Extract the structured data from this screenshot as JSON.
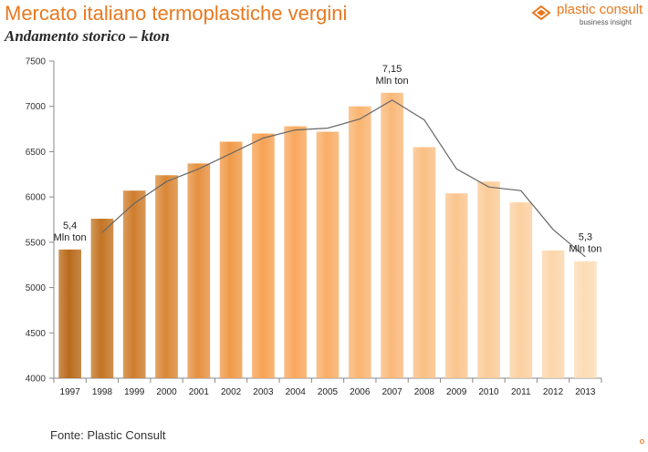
{
  "header": {
    "title": "Mercato italiano termoplastiche vergini",
    "subtitle": "Andamento storico – kton"
  },
  "logo": {
    "name": "plastic consult",
    "tagline": "business insight",
    "icon": "plastic-consult-logo-icon"
  },
  "footer": {
    "source": "Fonte: Plastic Consult"
  },
  "colors": {
    "accent": "#e8781e",
    "bar_dark": "#b86a1a",
    "bar_bright": "#f7a04f",
    "bar_light": "#fcdcb5",
    "trend_line": "#666666"
  },
  "chart_data": {
    "type": "bar",
    "categories": [
      "1997",
      "1998",
      "1999",
      "2000",
      "2001",
      "2002",
      "2003",
      "2004",
      "2005",
      "2006",
      "2007",
      "2008",
      "2009",
      "2010",
      "2011",
      "2012",
      "2013"
    ],
    "values": [
      5420,
      5760,
      6070,
      6240,
      6370,
      6610,
      6700,
      6780,
      6720,
      7000,
      7150,
      6550,
      6040,
      6170,
      5940,
      5410,
      5290
    ],
    "trend_line": {
      "x": [
        "1998",
        "1999",
        "2000",
        "2001",
        "2002",
        "2003",
        "2004",
        "2005",
        "2006",
        "2007",
        "2008",
        "2009",
        "2010",
        "2011",
        "2012",
        "2013"
      ],
      "values": [
        5610,
        5930,
        6170,
        6310,
        6480,
        6650,
        6740,
        6760,
        6860,
        7070,
        6850,
        6310,
        6110,
        6070,
        5640,
        5340
      ]
    },
    "ylim": [
      4000,
      7500
    ],
    "yticks": [
      4000,
      4500,
      5000,
      5500,
      6000,
      6500,
      7000,
      7500
    ],
    "grid": false,
    "legend": "none",
    "annotations": [
      {
        "category": "1997",
        "lines": [
          "5,4",
          "Mln ton"
        ]
      },
      {
        "category": "2007",
        "lines": [
          "7,15",
          "Mln ton"
        ]
      },
      {
        "category": "2013",
        "lines": [
          "5,3",
          "Mln ton"
        ]
      }
    ]
  }
}
